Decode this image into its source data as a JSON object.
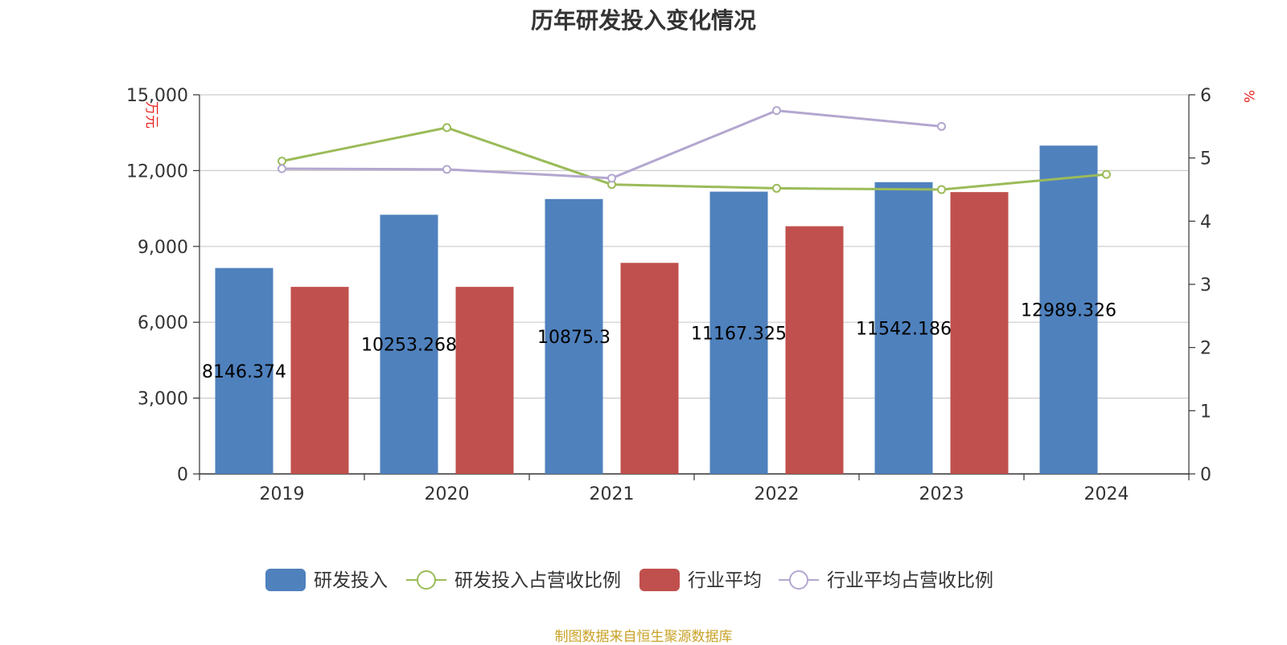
{
  "chart_data": {
    "type": "bar",
    "title": "历年研发投入变化情况",
    "source": "制图数据来自恒生聚源数据库",
    "categories": [
      "2019",
      "2020",
      "2021",
      "2022",
      "2023",
      "2024"
    ],
    "y_left": {
      "unit": "万元",
      "range": [
        0,
        15000
      ],
      "ticks": [
        "0",
        "3,000",
        "6,000",
        "9,000",
        "12,000",
        "15,000"
      ]
    },
    "y_right": {
      "unit": "%",
      "range": [
        0,
        6
      ],
      "ticks": [
        "0",
        "1",
        "2",
        "3",
        "4",
        "5",
        "6"
      ]
    },
    "grid": true,
    "legend_position": "bottom",
    "series": [
      {
        "name": "研发投入",
        "type": "bar",
        "axis": "left",
        "color": "#4f81bd",
        "values": [
          8146.374,
          10253.268,
          10875.3,
          11167.325,
          11542.186,
          12989.326
        ],
        "labels": [
          "8146.374",
          "10253.268",
          "10875.3",
          "11167.325",
          "11542.186",
          "12989.326"
        ]
      },
      {
        "name": "研发投入占营收比例",
        "type": "line",
        "axis": "right",
        "color": "#9bbb59",
        "values": [
          4.95,
          5.48,
          4.58,
          4.52,
          4.5,
          4.74
        ]
      },
      {
        "name": "行业平均",
        "type": "bar",
        "axis": "left",
        "color": "#c0504d",
        "values": [
          7400,
          7400,
          8350,
          9800,
          11150,
          null
        ]
      },
      {
        "name": "行业平均占营收比例",
        "type": "line",
        "axis": "right",
        "color": "#b3a7cf",
        "values": [
          4.83,
          4.82,
          4.68,
          5.75,
          5.5,
          null
        ]
      }
    ]
  }
}
